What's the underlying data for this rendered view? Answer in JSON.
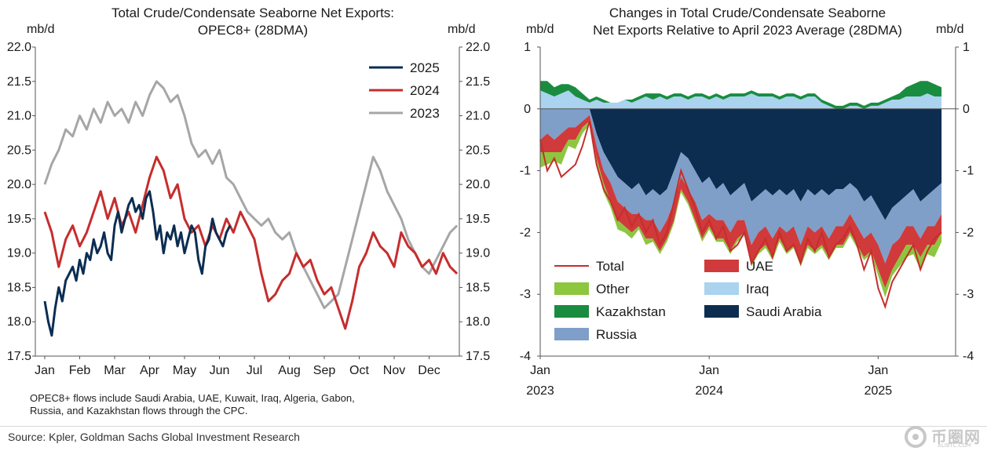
{
  "footer": {
    "source": "Source: Kpler, Goldman Sachs Global Investment Research",
    "watermark_text": "币圈网",
    "watermark_sub": "ALIBTC.COM"
  },
  "chart_data": [
    {
      "type": "line",
      "title": "Total Crude/Condensate Seaborne Net Exports:",
      "subtitle": "OPEC8+ (28DMA)",
      "ylabel_left": "mb/d",
      "ylabel_right": "mb/d",
      "ylim": [
        17.5,
        22.0
      ],
      "yticks": [
        "17.5",
        "18.0",
        "18.5",
        "19.0",
        "19.5",
        "20.0",
        "20.5",
        "21.0",
        "21.5",
        "22.0"
      ],
      "xticks": [
        "Jan",
        "Feb",
        "Mar",
        "Apr",
        "May",
        "Jun",
        "Jul",
        "Aug",
        "Sep",
        "Oct",
        "Nov",
        "Dec"
      ],
      "legend_position": "top-right",
      "note": "OPEC8+ flows include Saudi Arabia, UAE, Kuwait, Iraq, Algeria, Gabon, Russia, and Kazakhstan flows through the CPC.",
      "series": [
        {
          "name": "2025",
          "color": "#0b2d52",
          "x": [
            0,
            0.1,
            0.2,
            0.3,
            0.4,
            0.5,
            0.6,
            0.7,
            0.8,
            0.9,
            1.0,
            1.1,
            1.2,
            1.3,
            1.4,
            1.5,
            1.6,
            1.7,
            1.8,
            1.9,
            2.0,
            2.1,
            2.2,
            2.3,
            2.4,
            2.5,
            2.6,
            2.7,
            2.8,
            2.9,
            3.0,
            3.1,
            3.2,
            3.3,
            3.4,
            3.5,
            3.6,
            3.7,
            3.8,
            3.9,
            4.0,
            4.1,
            4.2,
            4.3,
            4.4,
            4.5,
            4.6,
            4.7,
            4.8,
            4.9,
            5.0,
            5.1,
            5.2,
            5.3
          ],
          "y": [
            18.3,
            18.0,
            17.8,
            18.2,
            18.5,
            18.3,
            18.6,
            18.7,
            18.8,
            18.6,
            18.9,
            18.7,
            19.0,
            18.9,
            19.2,
            19.0,
            19.1,
            19.3,
            19.0,
            18.9,
            19.4,
            19.6,
            19.3,
            19.5,
            19.7,
            19.8,
            19.6,
            19.7,
            19.5,
            19.8,
            19.9,
            19.6,
            19.2,
            19.4,
            19.0,
            19.3,
            19.2,
            19.4,
            19.1,
            19.3,
            19.0,
            19.2,
            19.4,
            19.3,
            18.9,
            18.7,
            19.1,
            19.2,
            19.5,
            19.3,
            19.2,
            19.1,
            19.3,
            19.4
          ]
        },
        {
          "name": "2024",
          "color": "#c62d2d",
          "x": [
            0,
            0.2,
            0.4,
            0.6,
            0.8,
            1.0,
            1.2,
            1.4,
            1.6,
            1.8,
            2.0,
            2.2,
            2.4,
            2.6,
            2.8,
            3.0,
            3.2,
            3.4,
            3.6,
            3.8,
            4.0,
            4.2,
            4.4,
            4.6,
            4.8,
            5.0,
            5.2,
            5.4,
            5.6,
            5.8,
            6.0,
            6.2,
            6.4,
            6.6,
            6.8,
            7.0,
            7.2,
            7.4,
            7.6,
            7.8,
            8.0,
            8.2,
            8.4,
            8.6,
            8.8,
            9.0,
            9.2,
            9.4,
            9.6,
            9.8,
            10.0,
            10.2,
            10.4,
            10.6,
            10.8,
            11.0,
            11.2,
            11.4,
            11.6,
            11.8
          ],
          "y": [
            19.6,
            19.3,
            18.8,
            19.2,
            19.4,
            19.1,
            19.3,
            19.6,
            19.9,
            19.5,
            19.8,
            19.4,
            19.6,
            19.3,
            19.7,
            20.1,
            20.4,
            20.2,
            19.8,
            20.0,
            19.5,
            19.3,
            19.4,
            19.1,
            19.4,
            19.2,
            19.5,
            19.3,
            19.6,
            19.4,
            19.2,
            18.7,
            18.3,
            18.4,
            18.6,
            18.7,
            19.0,
            18.8,
            18.9,
            18.6,
            18.4,
            18.5,
            18.2,
            17.9,
            18.3,
            18.8,
            19.0,
            19.3,
            19.1,
            19.0,
            18.8,
            19.3,
            19.1,
            19.0,
            18.8,
            18.9,
            18.7,
            19.0,
            18.8,
            18.7
          ]
        },
        {
          "name": "2023",
          "color": "#a6a6a6",
          "x": [
            0,
            0.2,
            0.4,
            0.6,
            0.8,
            1.0,
            1.2,
            1.4,
            1.6,
            1.8,
            2.0,
            2.2,
            2.4,
            2.6,
            2.8,
            3.0,
            3.2,
            3.4,
            3.6,
            3.8,
            4.0,
            4.2,
            4.4,
            4.6,
            4.8,
            5.0,
            5.2,
            5.4,
            5.6,
            5.8,
            6.0,
            6.2,
            6.4,
            6.6,
            6.8,
            7.0,
            7.2,
            7.4,
            7.6,
            7.8,
            8.0,
            8.2,
            8.4,
            8.6,
            8.8,
            9.0,
            9.2,
            9.4,
            9.6,
            9.8,
            10.0,
            10.2,
            10.4,
            10.6,
            10.8,
            11.0,
            11.2,
            11.4,
            11.6,
            11.8
          ],
          "y": [
            20.0,
            20.3,
            20.5,
            20.8,
            20.7,
            21.0,
            20.8,
            21.1,
            20.9,
            21.2,
            21.0,
            21.1,
            20.9,
            21.2,
            21.0,
            21.3,
            21.5,
            21.4,
            21.2,
            21.3,
            21.0,
            20.6,
            20.4,
            20.5,
            20.3,
            20.5,
            20.1,
            20.0,
            19.8,
            19.6,
            19.5,
            19.4,
            19.5,
            19.3,
            19.2,
            19.3,
            19.0,
            18.8,
            18.6,
            18.4,
            18.2,
            18.3,
            18.4,
            18.8,
            19.2,
            19.6,
            20.0,
            20.4,
            20.2,
            19.9,
            19.7,
            19.5,
            19.2,
            19.0,
            18.8,
            18.7,
            18.9,
            19.1,
            19.3,
            19.4
          ]
        }
      ]
    },
    {
      "type": "area",
      "title": "Changes in Total Crude/Condensate Seaborne",
      "subtitle": "Net Exports Relative to April 2023 Average (28DMA)",
      "ylabel_left": "mb/d",
      "ylabel_right": "mb/d",
      "ylim": [
        -4,
        1
      ],
      "yticks": [
        "-4",
        "-3",
        "-2",
        "-1",
        "0",
        "1"
      ],
      "xticks": [
        {
          "month": "Jan",
          "year": "2023",
          "t": 0
        },
        {
          "month": "Jan",
          "year": "2024",
          "t": 12
        },
        {
          "month": "Jan",
          "year": "2025",
          "t": 24
        }
      ],
      "x_range_months": [
        0,
        29.5
      ],
      "t": [
        0,
        0.5,
        1,
        1.5,
        2,
        2.5,
        3,
        3.5,
        4,
        4.5,
        5,
        5.5,
        6,
        6.5,
        7,
        7.5,
        8,
        8.5,
        9,
        9.5,
        10,
        10.5,
        11,
        11.5,
        12,
        12.5,
        13,
        13.5,
        14,
        14.5,
        15,
        15.5,
        16,
        16.5,
        17,
        17.5,
        18,
        18.5,
        19,
        19.5,
        20,
        20.5,
        21,
        21.5,
        22,
        22.5,
        23,
        23.5,
        24,
        24.5,
        25,
        25.5,
        26,
        26.5,
        27,
        27.5,
        28,
        28.5
      ],
      "legend_position": "bottom-left",
      "series": [
        {
          "name": "Total",
          "kind": "line",
          "color": "#c62d2d",
          "values": [
            -0.5,
            -1.0,
            -0.8,
            -1.1,
            -1.0,
            -0.9,
            -0.6,
            -0.2,
            -0.9,
            -1.3,
            -1.5,
            -1.8,
            -1.6,
            -1.9,
            -1.7,
            -2.0,
            -1.8,
            -2.2,
            -2.0,
            -1.5,
            -1.0,
            -1.3,
            -1.6,
            -2.0,
            -1.8,
            -2.1,
            -1.9,
            -2.3,
            -2.2,
            -2.0,
            -2.5,
            -2.3,
            -2.1,
            -2.4,
            -2.0,
            -2.3,
            -2.2,
            -2.5,
            -2.1,
            -2.3,
            -2.0,
            -2.4,
            -2.2,
            -2.1,
            -1.9,
            -2.2,
            -2.6,
            -2.3,
            -2.9,
            -3.2,
            -2.8,
            -2.6,
            -2.4,
            -2.2,
            -2.6,
            -2.3,
            -2.1,
            -2.0
          ]
        },
        {
          "name": "Other",
          "kind": "area",
          "color": "#8dc63f",
          "values": [
            -0.25,
            -0.2,
            -0.15,
            -0.2,
            -0.1,
            -0.15,
            -0.1,
            -0.05,
            -0.1,
            -0.15,
            -0.1,
            -0.15,
            -0.1,
            -0.1,
            -0.05,
            -0.1,
            -0.05,
            -0.05,
            -0.05,
            -0.05,
            -0.05,
            -0.05,
            -0.05,
            -0.05,
            -0.05,
            -0.05,
            -0.05,
            -0.05,
            -0.05,
            -0.05,
            -0.05,
            -0.05,
            -0.05,
            -0.05,
            -0.05,
            -0.05,
            -0.05,
            -0.05,
            -0.05,
            -0.05,
            -0.05,
            -0.05,
            -0.05,
            -0.05,
            -0.05,
            -0.05,
            -0.05,
            -0.05,
            -0.1,
            -0.15,
            -0.1,
            -0.15,
            -0.2,
            -0.15,
            -0.2,
            -0.15,
            -0.2,
            -0.15
          ]
        },
        {
          "name": "Kazakhstan",
          "kind": "area",
          "color": "#1a8c3f",
          "values": [
            0.15,
            0.2,
            0.15,
            0.15,
            0.1,
            0.15,
            0.1,
            0.05,
            0.05,
            0.05,
            0.0,
            0.0,
            0.0,
            0.05,
            0.05,
            0.05,
            0.1,
            0.05,
            0.05,
            0.05,
            0.05,
            0.05,
            0.05,
            0.05,
            0.05,
            0.05,
            0.05,
            0.05,
            0.05,
            0.05,
            0.05,
            0.05,
            0.05,
            0.05,
            0.05,
            0.05,
            0.05,
            0.05,
            0.05,
            0.05,
            0.05,
            0.05,
            0.05,
            0.05,
            0.05,
            0.05,
            0.05,
            0.05,
            0.05,
            0.05,
            0.05,
            0.1,
            0.15,
            0.2,
            0.25,
            0.2,
            0.2,
            0.15
          ]
        },
        {
          "name": "Russia",
          "kind": "area",
          "color": "#7f9fc9",
          "values": [
            -0.5,
            -0.4,
            -0.5,
            -0.4,
            -0.3,
            -0.3,
            -0.2,
            -0.1,
            -0.2,
            -0.3,
            -0.3,
            -0.4,
            -0.4,
            -0.4,
            -0.5,
            -0.4,
            -0.5,
            -0.6,
            -0.5,
            -0.5,
            -0.4,
            -0.5,
            -0.5,
            -0.6,
            -0.6,
            -0.5,
            -0.6,
            -0.6,
            -0.5,
            -0.6,
            -0.7,
            -0.6,
            -0.6,
            -0.7,
            -0.6,
            -0.6,
            -0.6,
            -0.7,
            -0.6,
            -0.6,
            -0.6,
            -0.7,
            -0.6,
            -0.6,
            -0.5,
            -0.6,
            -0.6,
            -0.6,
            -0.6,
            -0.7,
            -0.6,
            -0.6,
            -0.5,
            -0.6,
            -0.6,
            -0.5,
            -0.6,
            -0.5
          ]
        },
        {
          "name": "UAE",
          "kind": "area",
          "color": "#d03a3a",
          "values": [
            -0.2,
            -0.3,
            -0.2,
            -0.3,
            -0.2,
            -0.2,
            -0.1,
            -0.1,
            -0.2,
            -0.2,
            -0.3,
            -0.3,
            -0.3,
            -0.3,
            -0.2,
            -0.3,
            -0.3,
            -0.3,
            -0.3,
            -0.3,
            -0.2,
            -0.2,
            -0.3,
            -0.3,
            -0.2,
            -0.3,
            -0.3,
            -0.3,
            -0.3,
            -0.2,
            -0.3,
            -0.3,
            -0.3,
            -0.3,
            -0.2,
            -0.3,
            -0.3,
            -0.3,
            -0.3,
            -0.3,
            -0.3,
            -0.3,
            -0.3,
            -0.3,
            -0.3,
            -0.3,
            -0.3,
            -0.3,
            -0.4,
            -0.4,
            -0.4,
            -0.3,
            -0.3,
            -0.3,
            -0.3,
            -0.3,
            -0.3,
            -0.3
          ]
        },
        {
          "name": "Iraq",
          "kind": "area",
          "color": "#a9d3ef",
          "values": [
            0.3,
            0.25,
            0.2,
            0.25,
            0.3,
            0.2,
            0.15,
            0.1,
            0.15,
            0.1,
            0.1,
            0.1,
            0.15,
            0.1,
            0.15,
            0.2,
            0.15,
            0.2,
            0.15,
            0.2,
            0.2,
            0.15,
            0.2,
            0.2,
            0.15,
            0.2,
            0.15,
            0.2,
            0.2,
            0.2,
            0.25,
            0.2,
            0.2,
            0.2,
            0.15,
            0.2,
            0.2,
            0.15,
            0.2,
            0.2,
            0.1,
            0.05,
            0.0,
            0.0,
            0.05,
            0.05,
            0.0,
            0.05,
            0.05,
            0.1,
            0.15,
            0.15,
            0.2,
            0.2,
            0.2,
            0.25,
            0.2,
            0.2
          ]
        },
        {
          "name": "Saudi Arabia",
          "kind": "area",
          "color": "#0c2d4f",
          "values": [
            0,
            0,
            0,
            0,
            0,
            0,
            0,
            0,
            -0.4,
            -0.7,
            -0.9,
            -1.1,
            -1.2,
            -1.3,
            -1.2,
            -1.4,
            -1.3,
            -1.4,
            -1.3,
            -1.0,
            -0.7,
            -0.8,
            -1.0,
            -1.2,
            -1.1,
            -1.3,
            -1.2,
            -1.4,
            -1.3,
            -1.2,
            -1.5,
            -1.4,
            -1.3,
            -1.4,
            -1.3,
            -1.4,
            -1.3,
            -1.5,
            -1.3,
            -1.4,
            -1.3,
            -1.4,
            -1.3,
            -1.3,
            -1.2,
            -1.3,
            -1.5,
            -1.4,
            -1.6,
            -1.8,
            -1.6,
            -1.5,
            -1.4,
            -1.3,
            -1.5,
            -1.4,
            -1.3,
            -1.2
          ]
        }
      ]
    }
  ]
}
